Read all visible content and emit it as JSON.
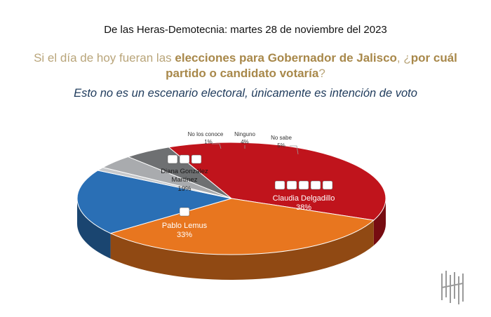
{
  "header": {
    "source": "De las Heras-Demotecnia: martes 28 de noviembre del 2023",
    "question_pre": "Si el día de hoy fueran las ",
    "question_bold_1": "elecciones para Gobernador de Jalisco",
    "question_mid": ", ¿",
    "question_bold_2": "por cuál partido o candidato votaría",
    "question_post": "?",
    "note": "Esto no es un escenario electoral, únicamente es intención de voto"
  },
  "chart_data": {
    "type": "pie",
    "style": "3d",
    "slices": [
      {
        "label": "Claudia Delgadillo",
        "value": 38,
        "value_label": "38%",
        "color": "#c0141c",
        "party_icons": [
          "MORENA",
          "PT",
          "PVEM",
          "HAGAMOS",
          "FUTURO"
        ]
      },
      {
        "label": "Pablo Lemus",
        "value": 33,
        "value_label": "33%",
        "color": "#e8761f",
        "party_icons": [
          "MC"
        ]
      },
      {
        "label": "Diana González Martínez",
        "label_lines": [
          "Diana González",
          "Martínez"
        ],
        "value": 19,
        "value_label": "19%",
        "color": "#2a6fb5",
        "party_icons": [
          "PAN",
          "PRI",
          "PRD"
        ]
      },
      {
        "label": "No los conoce",
        "value": 1,
        "value_label": "1%",
        "color": "#c7c9cc"
      },
      {
        "label": "Ninguno",
        "value": 4,
        "value_label": "4%",
        "color": "#a9abae"
      },
      {
        "label": "No sabe",
        "value": 5,
        "value_label": "5%",
        "color": "#6e7072"
      }
    ]
  },
  "logo": {
    "name": "demotecnia-logo"
  }
}
